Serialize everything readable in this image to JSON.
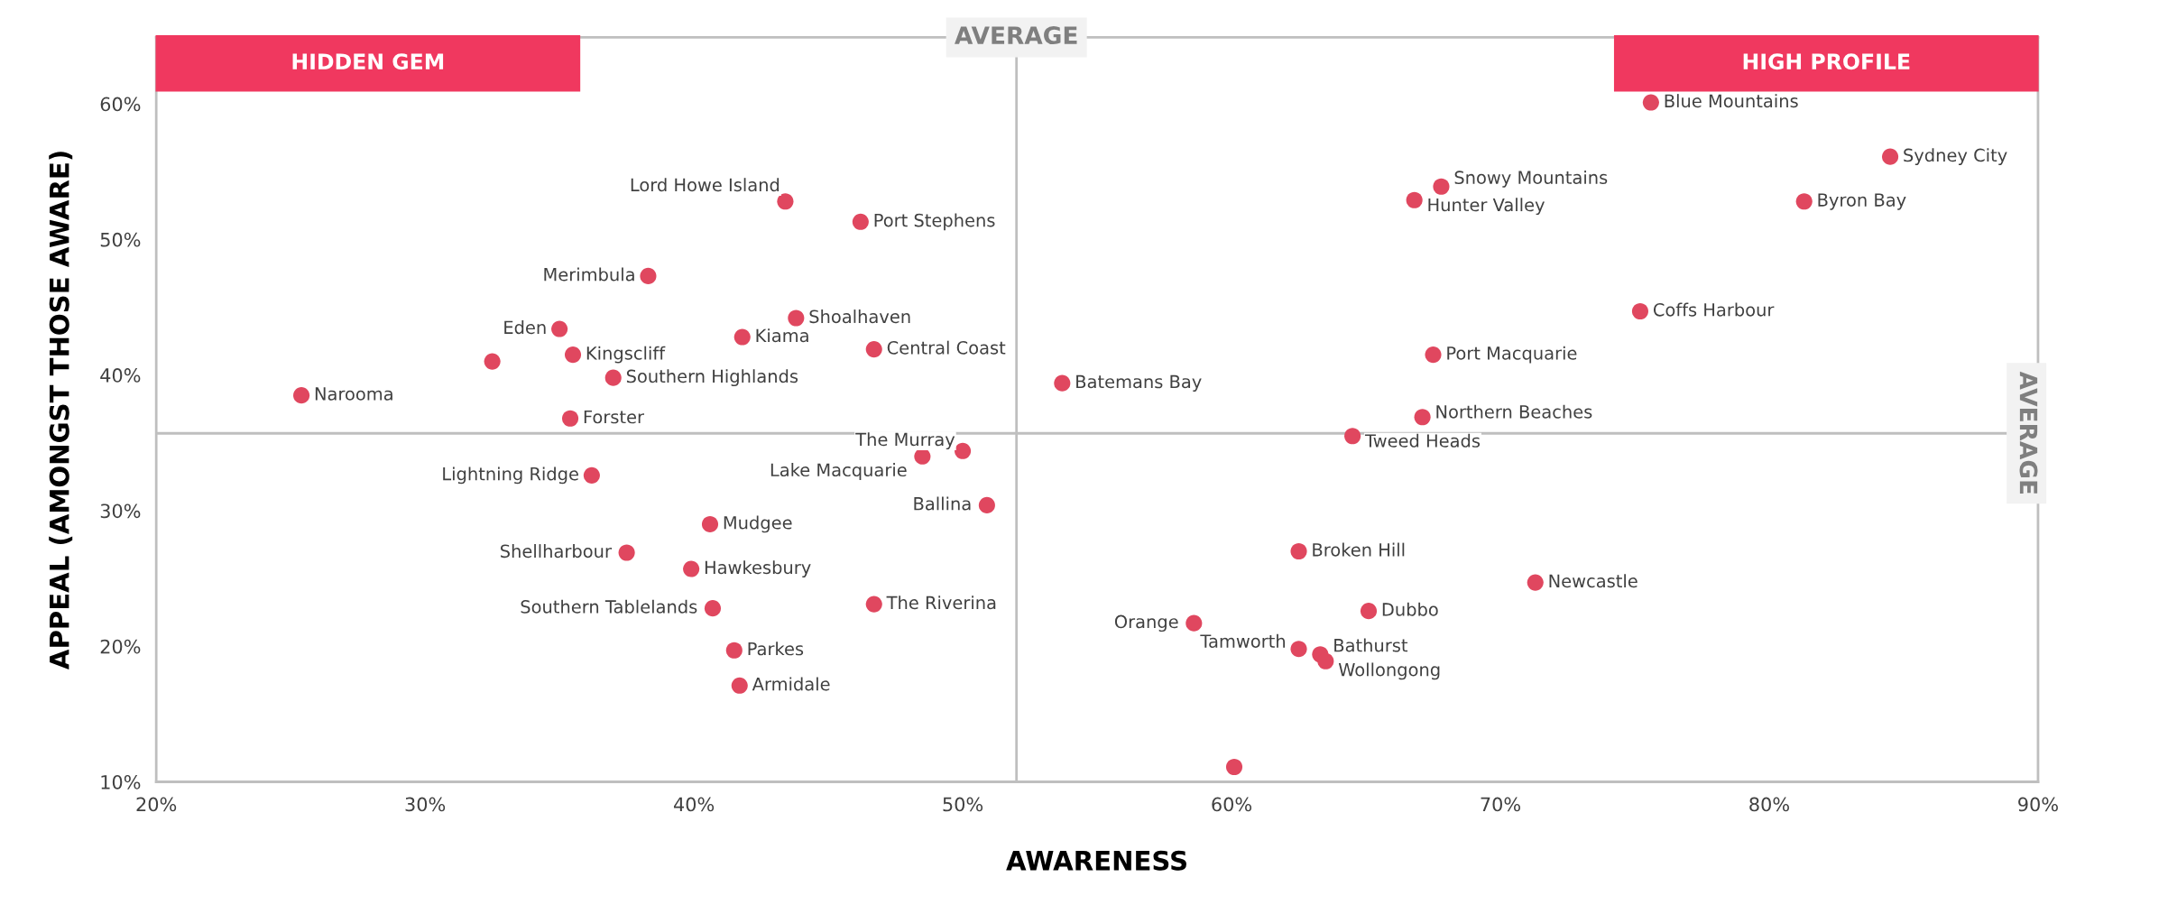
{
  "chart_data": {
    "type": "scatter",
    "xlabel": "AWARENESS",
    "ylabel": "APPEAL (AMONGST THOSE AWARE)",
    "xlim": [
      20,
      90
    ],
    "ylim": [
      10,
      64.9
    ],
    "xticks": [
      {
        "value": 20,
        "label": "20%"
      },
      {
        "value": 30,
        "label": "30%"
      },
      {
        "value": 40,
        "label": "40%"
      },
      {
        "value": 50,
        "label": "50%"
      },
      {
        "value": 60,
        "label": "60%"
      },
      {
        "value": 70,
        "label": "70%"
      },
      {
        "value": 80,
        "label": "80%"
      },
      {
        "value": 90,
        "label": "90%"
      }
    ],
    "yticks": [
      {
        "value": 10,
        "label": "10%"
      },
      {
        "value": 20,
        "label": "20%"
      },
      {
        "value": 30,
        "label": "30%"
      },
      {
        "value": 40,
        "label": "40%"
      },
      {
        "value": 50,
        "label": "50%"
      },
      {
        "value": 60,
        "label": "60%"
      }
    ],
    "grid": false,
    "marker": "circle",
    "series": [
      {
        "color": "#e0475f",
        "x": [
          75.6,
          84.5,
          81.3,
          67.8,
          66.8,
          75.2,
          67.5,
          67.1,
          64.5,
          53.7,
          43.4,
          46.2,
          38.3,
          43.8,
          35.0,
          41.8,
          35.5,
          46.7,
          37.0,
          32.5,
          25.4,
          35.4,
          50.0,
          48.5,
          36.2,
          50.9,
          40.6,
          37.5,
          39.9,
          40.7,
          46.7,
          41.5,
          41.7,
          58.6,
          62.5,
          71.3,
          65.1,
          62.5,
          63.3,
          63.5,
          60.1
        ],
        "values": [
          60.1,
          56.1,
          52.8,
          53.9,
          52.9,
          44.7,
          41.5,
          36.9,
          35.5,
          39.4,
          52.8,
          51.3,
          47.3,
          44.2,
          43.4,
          42.8,
          41.5,
          41.9,
          39.8,
          41.0,
          38.5,
          36.8,
          34.4,
          34.0,
          32.6,
          30.4,
          29.0,
          26.9,
          25.7,
          22.8,
          23.1,
          19.7,
          17.1,
          21.7,
          27.0,
          24.7,
          22.6,
          19.8,
          19.4,
          18.9,
          11.1
        ]
      }
    ],
    "ref_lines": [
      {
        "axis": "x",
        "value": 52.0,
        "label": "AVERAGE",
        "color": "#bfbfbf"
      },
      {
        "axis": "y",
        "value": 35.7,
        "label": "AVERAGE",
        "color": "#bfbfbf"
      }
    ],
    "annotations": [
      "HIDDEN GEM",
      "HIGH PROFILE",
      {
        "text": "Blue Mountains",
        "x": 75.6,
        "y": 60.1
      },
      {
        "text": "Sydney City",
        "x": 84.5,
        "y": 56.1
      },
      {
        "text": "Byron Bay",
        "x": 81.3,
        "y": 52.8
      },
      {
        "text": "Snowy Mountains",
        "x": 67.8,
        "y": 53.9
      },
      {
        "text": "Hunter Valley",
        "x": 66.8,
        "y": 52.9
      },
      {
        "text": "Coffs Harbour",
        "x": 75.2,
        "y": 44.7
      },
      {
        "text": "Port Macquarie",
        "x": 67.5,
        "y": 41.5
      },
      {
        "text": "Northern Beaches",
        "x": 67.1,
        "y": 36.9
      },
      {
        "text": "Tweed Heads",
        "x": 64.5,
        "y": 35.5
      },
      {
        "text": "Batemans Bay",
        "x": 53.7,
        "y": 39.4
      },
      {
        "text": "Lord Howe Island",
        "x": 43.4,
        "y": 52.8
      },
      {
        "text": "Port Stephens",
        "x": 46.2,
        "y": 51.3
      },
      {
        "text": "Merimbula",
        "x": 38.3,
        "y": 47.3
      },
      {
        "text": "Shoalhaven",
        "x": 43.8,
        "y": 44.2
      },
      {
        "text": "Eden",
        "x": 35.0,
        "y": 43.4
      },
      {
        "text": "Kiama",
        "x": 41.8,
        "y": 42.8
      },
      {
        "text": "Kingscliff",
        "x": 35.5,
        "y": 41.5
      },
      {
        "text": "Central Coast",
        "x": 46.7,
        "y": 41.9
      },
      {
        "text": "Southern Highlands",
        "x": 37.0,
        "y": 39.8
      },
      {
        "text": "Narooma",
        "x": 25.4,
        "y": 38.5
      },
      {
        "text": "Forster",
        "x": 35.4,
        "y": 36.8
      },
      {
        "text": "The Murray",
        "x": 50.0,
        "y": 34.4
      },
      {
        "text": "Lake Macquarie",
        "x": 48.5,
        "y": 34.0
      },
      {
        "text": "Lightning Ridge",
        "x": 36.2,
        "y": 32.6
      },
      {
        "text": "Ballina",
        "x": 50.9,
        "y": 30.4
      },
      {
        "text": "Mudgee",
        "x": 40.6,
        "y": 29.0
      },
      {
        "text": "Shellharbour",
        "x": 37.5,
        "y": 26.9
      },
      {
        "text": "Hawkesbury",
        "x": 39.9,
        "y": 25.7
      },
      {
        "text": "Southern Tablelands",
        "x": 40.7,
        "y": 22.8
      },
      {
        "text": "The Riverina",
        "x": 46.7,
        "y": 23.1
      },
      {
        "text": "Parkes",
        "x": 41.5,
        "y": 19.7
      },
      {
        "text": "Armidale",
        "x": 41.7,
        "y": 17.1
      },
      {
        "text": "Orange",
        "x": 58.6,
        "y": 21.7
      },
      {
        "text": "Broken Hill",
        "x": 62.5,
        "y": 27.0
      },
      {
        "text": "Newcastle",
        "x": 71.3,
        "y": 24.7
      },
      {
        "text": "Dubbo",
        "x": 65.1,
        "y": 22.6
      },
      {
        "text": "Tamworth",
        "x": 62.5,
        "y": 19.8
      },
      {
        "text": "Bathurst",
        "x": 63.3,
        "y": 19.4
      },
      {
        "text": "Wollongong",
        "x": 63.5,
        "y": 18.9
      }
    ]
  }
}
